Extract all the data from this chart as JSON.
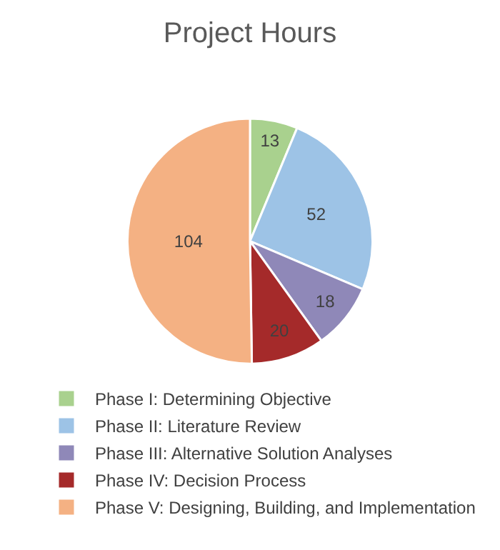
{
  "chart_data": {
    "type": "pie",
    "title": "Project Hours",
    "categories": [
      "Phase I: Determining Objective",
      "Phase II: Literature Review",
      "Phase III: Alternative Solution Analyses",
      "Phase IV: Decision Process",
      "Phase V: Designing, Building, and Implementation"
    ],
    "values": [
      13,
      52,
      18,
      20,
      104
    ],
    "colors": [
      "#a9d18e",
      "#9dc3e6",
      "#8f88b8",
      "#a52a2a",
      "#f4b183"
    ],
    "data_labels": true,
    "legend": "bottom"
  }
}
